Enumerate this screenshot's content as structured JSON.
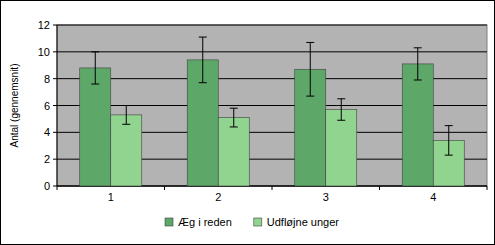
{
  "chart_data": {
    "type": "bar",
    "y_label": "Antal (gennemsnit)",
    "categories": [
      "1",
      "2",
      "3",
      "4"
    ],
    "series": [
      {
        "name": "Æg i reden",
        "color": "#5da869",
        "values": [
          8.8,
          9.4,
          8.7,
          9.1
        ],
        "errors": [
          1.2,
          1.7,
          2.0,
          1.2
        ]
      },
      {
        "name": "Udfløjne unger",
        "color": "#90d490",
        "values": [
          5.3,
          5.1,
          5.7,
          3.4
        ],
        "errors": [
          0.7,
          0.7,
          0.8,
          1.1
        ]
      }
    ],
    "ylim": [
      0,
      12
    ],
    "yticks": [
      0,
      2,
      4,
      6,
      8,
      10,
      12
    ],
    "grid": true,
    "legend": "bottom"
  }
}
